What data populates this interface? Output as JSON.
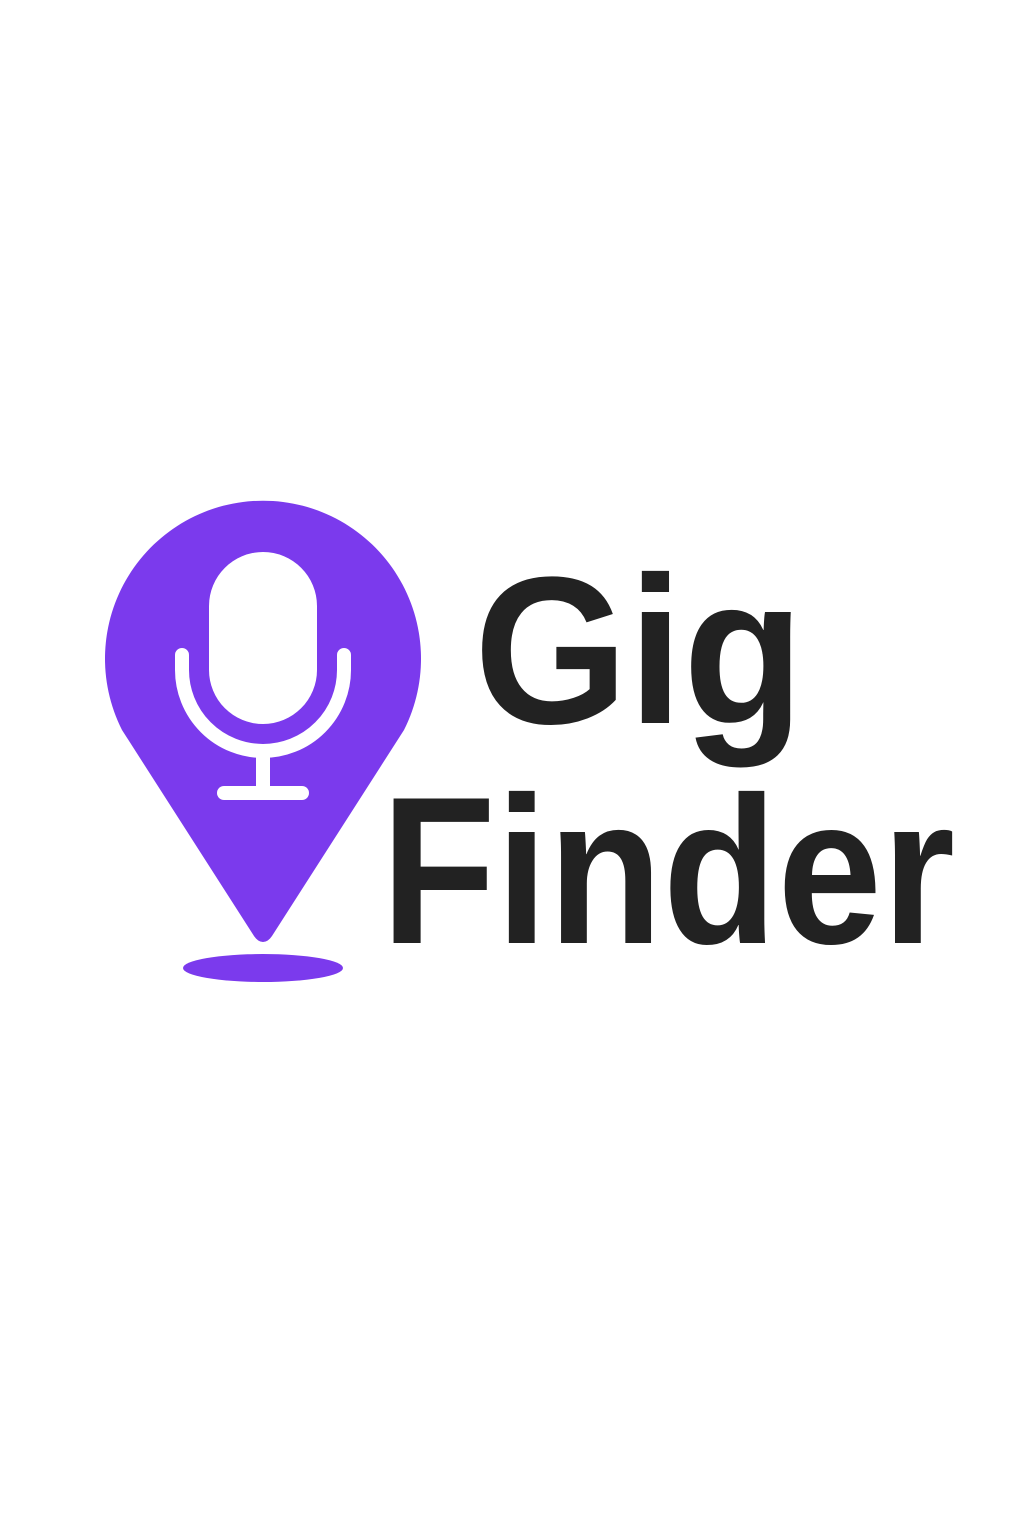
{
  "logo": {
    "name_lines": [
      "Gig",
      "Finder"
    ]
  }
}
